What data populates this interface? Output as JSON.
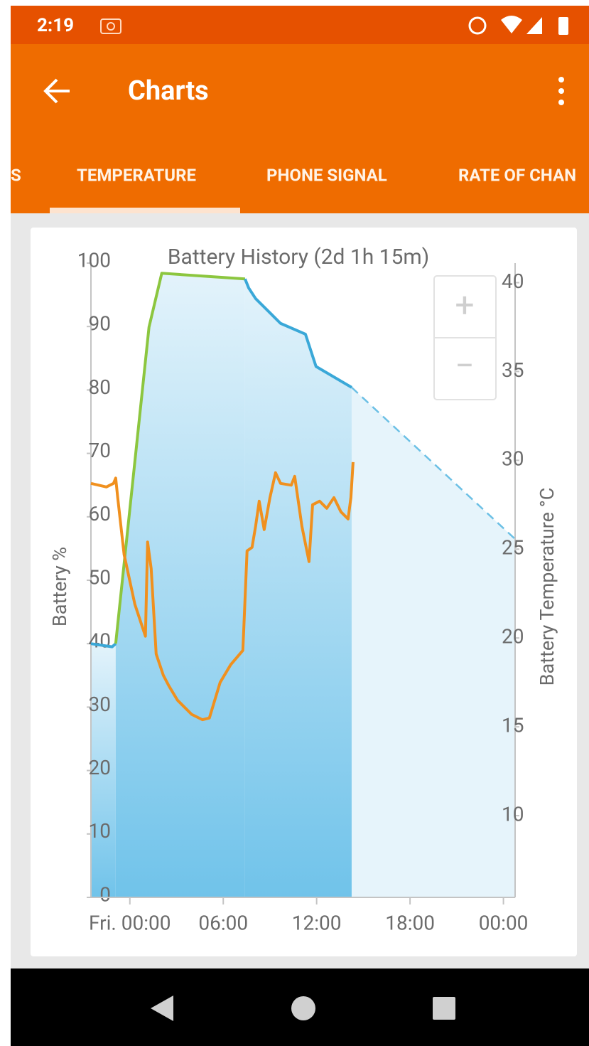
{
  "status_bar": {
    "time": "2:19"
  },
  "app_bar": {
    "title": "Charts"
  },
  "tabs": [
    "S",
    "TEMPERATURE",
    "PHONE SIGNAL",
    "RATE OF CHAN"
  ],
  "zoom": {
    "in": "+",
    "out": "−"
  },
  "chart_data": {
    "type": "line",
    "title": "Battery History (2d 1h 15m)",
    "ylabel": "Battery %",
    "y2label": "Battery Temperature °C",
    "xlim": [
      -2.5,
      24.75
    ],
    "xticks": [
      {
        "value": 0,
        "label": "Fri. 00:00"
      },
      {
        "value": 6,
        "label": "06:00"
      },
      {
        "value": 12,
        "label": "12:00"
      },
      {
        "value": 18,
        "label": "18:00"
      },
      {
        "value": 24,
        "label": "00:00"
      }
    ],
    "ylim": [
      0,
      100
    ],
    "yticks": [
      0,
      10,
      20,
      30,
      40,
      50,
      60,
      70,
      80,
      90,
      100
    ],
    "y2lim": [
      5.4,
      41.1
    ],
    "y2ticks": [
      10,
      15,
      20,
      25,
      30,
      35,
      40
    ],
    "series": [
      {
        "color": "#3aa8d8",
        "fill": true,
        "x": [
          -2.5,
          -1.14,
          -0.91
        ],
        "values": [
          40,
          39.5,
          40
        ]
      },
      {
        "color": "#8cc63f",
        "fill": true,
        "x": [
          -0.91,
          1.23,
          2.05,
          7.4
        ],
        "values": [
          40,
          89.9,
          98.4,
          97.5
        ]
      },
      {
        "color": "#3aa8d8",
        "fill": true,
        "x": [
          7.4,
          7.63,
          8.08,
          9.68,
          11.28,
          11.96,
          14.25
        ],
        "values": [
          97.5,
          96.1,
          94.4,
          90.5,
          88.8,
          83.7,
          80.4
        ]
      },
      {
        "color": "#6cc0e5",
        "fill": true,
        "dashed": true,
        "x": [
          14.25,
          24.75
        ],
        "values": [
          80.4,
          56.5
        ]
      },
      {
        "color": "#f0901e",
        "axis": "y2",
        "x": [
          -2.5,
          -1.51,
          -1.05,
          -0.91,
          -0.78,
          -0.37,
          0.32,
          1.0,
          1.14,
          1.37,
          1.69,
          2.15,
          2.51,
          3.06,
          3.97,
          4.66,
          5.11,
          5.8,
          6.48,
          7.26,
          7.53,
          7.85,
          8.08,
          8.31,
          8.63,
          9.0,
          9.36,
          9.68,
          10.37,
          10.59,
          11.05,
          11.51,
          11.74,
          12.19,
          12.65,
          13.11,
          13.56,
          14.02,
          14.2,
          14.34
        ],
        "values": [
          28.7,
          28.5,
          28.7,
          29.0,
          27.9,
          24.7,
          21.9,
          20.1,
          25.4,
          23.9,
          19.1,
          17.9,
          17.3,
          16.5,
          15.7,
          15.4,
          15.5,
          17.5,
          18.5,
          19.3,
          24.9,
          25.1,
          26.3,
          27.7,
          26.1,
          27.9,
          29.3,
          28.7,
          28.6,
          29.1,
          26.3,
          24.3,
          27.5,
          27.7,
          27.3,
          27.9,
          27.1,
          26.7,
          27.9,
          29.9
        ]
      }
    ]
  }
}
